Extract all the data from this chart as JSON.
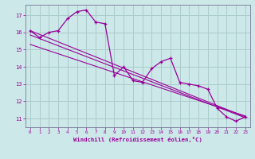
{
  "xlabel": "Windchill (Refroidissement éolien,°C)",
  "bg_color": "#cce8e8",
  "line_color": "#990099",
  "grid_color": "#aacccc",
  "series": [
    [
      0,
      16.1
    ],
    [
      1,
      15.7
    ],
    [
      2,
      16.0
    ],
    [
      3,
      16.1
    ],
    [
      4,
      16.8
    ],
    [
      5,
      17.2
    ],
    [
      6,
      17.3
    ],
    [
      7,
      16.6
    ],
    [
      8,
      16.5
    ],
    [
      9,
      13.5
    ],
    [
      10,
      14.0
    ],
    [
      11,
      13.2
    ],
    [
      12,
      13.1
    ],
    [
      13,
      13.9
    ],
    [
      14,
      14.3
    ],
    [
      15,
      14.5
    ],
    [
      16,
      13.1
    ],
    [
      17,
      13.0
    ],
    [
      18,
      12.9
    ],
    [
      19,
      12.7
    ],
    [
      20,
      11.6
    ],
    [
      21,
      11.1
    ],
    [
      22,
      10.85
    ],
    [
      23,
      11.1
    ]
  ],
  "trend_lines": [
    [
      [
        0,
        16.1
      ],
      [
        23,
        11.1
      ]
    ],
    [
      [
        0,
        15.85
      ],
      [
        23,
        11.05
      ]
    ],
    [
      [
        0,
        15.3
      ],
      [
        23,
        11.15
      ]
    ]
  ],
  "xlim": [
    -0.5,
    23.5
  ],
  "ylim": [
    10.5,
    17.6
  ],
  "yticks": [
    11,
    12,
    13,
    14,
    15,
    16,
    17
  ],
  "xticks": [
    0,
    1,
    2,
    3,
    4,
    5,
    6,
    7,
    8,
    9,
    10,
    11,
    12,
    13,
    14,
    15,
    16,
    17,
    18,
    19,
    20,
    21,
    22,
    23
  ]
}
